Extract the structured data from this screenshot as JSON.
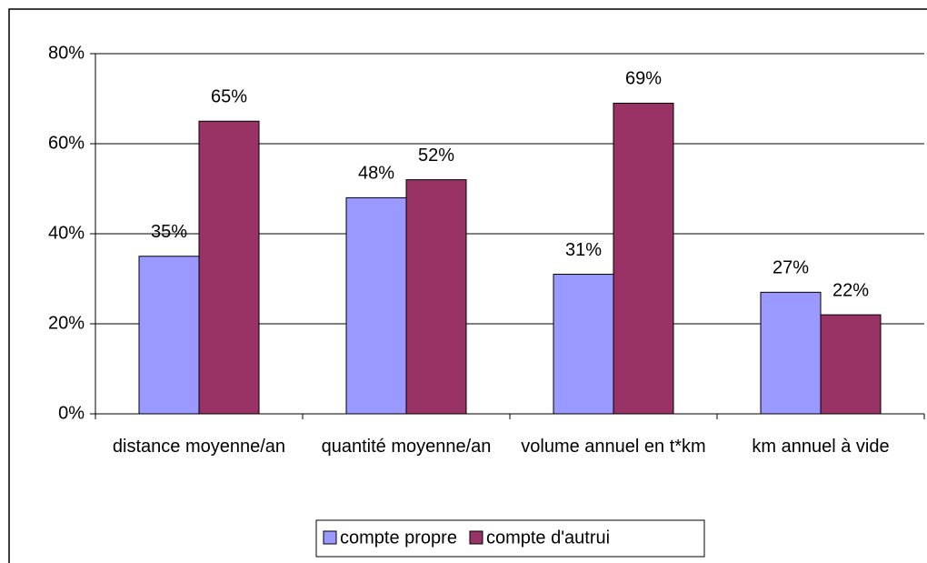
{
  "chart_data": {
    "type": "bar",
    "categories": [
      "distance moyenne/an",
      "quantité moyenne/an",
      "volume annuel en t*km",
      "km annuel à vide"
    ],
    "series": [
      {
        "name": "compte propre",
        "color": "#9999ff",
        "values": [
          35,
          48,
          31,
          27
        ],
        "value_labels": [
          "35%",
          "48%",
          "31%",
          "27%"
        ]
      },
      {
        "name": "compte d'autrui",
        "color": "#993366",
        "values": [
          65,
          52,
          69,
          22
        ],
        "value_labels": [
          "65%",
          "52%",
          "69%",
          "22%"
        ]
      }
    ],
    "ylim": [
      0,
      80
    ],
    "yticks": [
      {
        "value": 0,
        "label": "0%"
      },
      {
        "value": 20,
        "label": "20%"
      },
      {
        "value": 40,
        "label": "40%"
      },
      {
        "value": 60,
        "label": "60%"
      },
      {
        "value": 80,
        "label": "80%"
      }
    ],
    "grid": true,
    "legend": "bottom"
  }
}
